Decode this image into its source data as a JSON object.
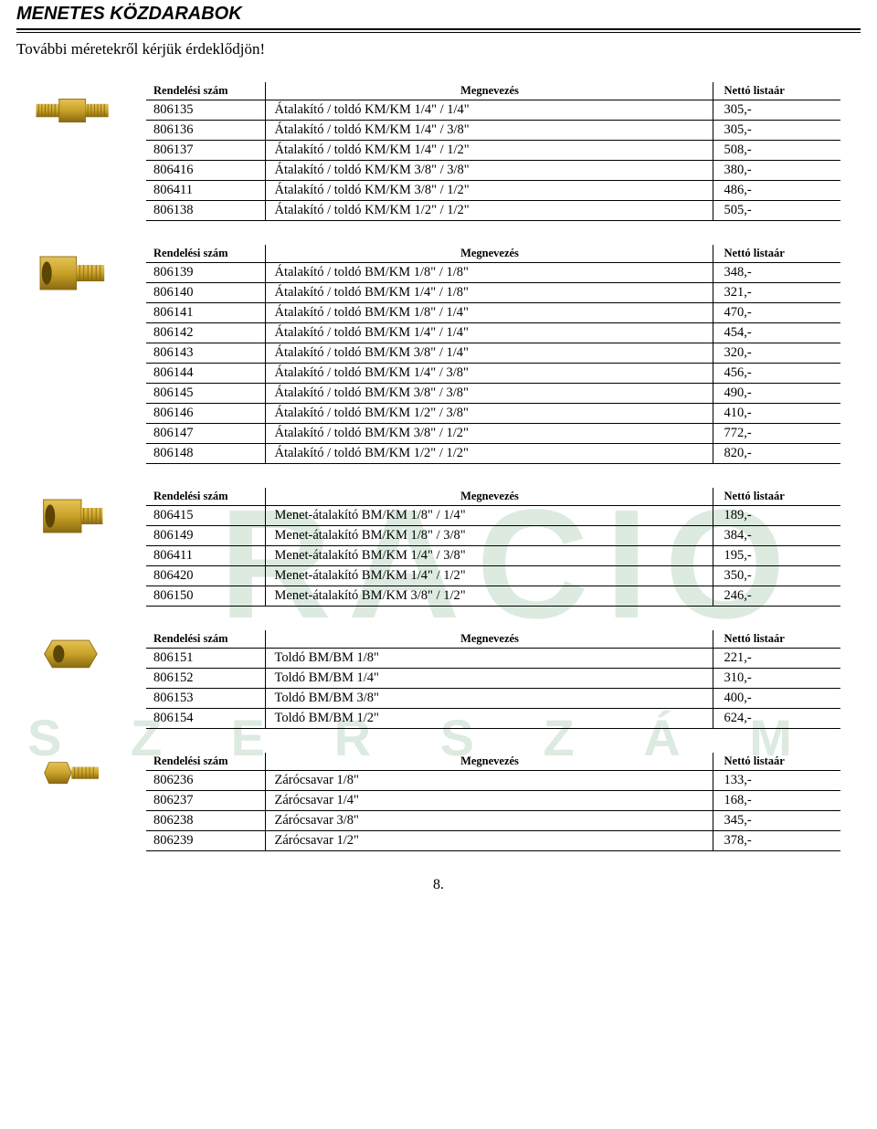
{
  "page": {
    "title": "MENETES KÖZDARABOK",
    "subtitle": "További méretekről kérjük érdeklődjön!",
    "page_number": "8."
  },
  "columns": {
    "code": "Rendelési  szám",
    "name": "Megnevezés",
    "price": "Nettó listaár"
  },
  "watermark": {
    "line1": "RACIO",
    "line2": "S Z E R S Z Á M"
  },
  "thumbs": {
    "brass_base": "#c9a227",
    "brass_light": "#e4c255",
    "brass_dark": "#8a6a12",
    "bg": "#ffffff"
  },
  "tables": [
    {
      "rows": [
        {
          "code": "806135",
          "name": "Átalakító / toldó KM/KM  1/4\" / 1/4\"",
          "price": "305,-"
        },
        {
          "code": "806136",
          "name": "Átalakító / toldó KM/KM  1/4\" / 3/8\"",
          "price": "305,-"
        },
        {
          "code": "806137",
          "name": "Átalakító / toldó KM/KM  1/4\" / 1/2\"",
          "price": "508,-"
        },
        {
          "code": "806416",
          "name": "Átalakító / toldó KM/KM  3/8\" / 3/8\"",
          "price": "380,-"
        },
        {
          "code": "806411",
          "name": "Átalakító / toldó KM/KM  3/8\" / 1/2\"",
          "price": "486,-"
        },
        {
          "code": "806138",
          "name": "Átalakító / toldó KM/KM  1/2\" / 1/2\"",
          "price": "505,-"
        }
      ]
    },
    {
      "rows": [
        {
          "code": "806139",
          "name": "Átalakító / toldó BM/KM  1/8\" / 1/8\"",
          "price": "348,-"
        },
        {
          "code": "806140",
          "name": "Átalakító / toldó BM/KM  1/4\" / 1/8\"",
          "price": "321,-"
        },
        {
          "code": "806141",
          "name": "Átalakító / toldó BM/KM  1/8\" / 1/4\"",
          "price": "470,-"
        },
        {
          "code": "806142",
          "name": "Átalakító / toldó BM/KM  1/4\" / 1/4\"",
          "price": "454,-"
        },
        {
          "code": "806143",
          "name": "Átalakító / toldó BM/KM  3/8\" / 1/4\"",
          "price": "320,-"
        },
        {
          "code": "806144",
          "name": "Átalakító / toldó BM/KM  1/4\" / 3/8\"",
          "price": "456,-"
        },
        {
          "code": "806145",
          "name": "Átalakító / toldó BM/KM  3/8\" / 3/8\"",
          "price": "490,-"
        },
        {
          "code": "806146",
          "name": "Átalakító / toldó BM/KM  1/2\" / 3/8\"",
          "price": "410,-"
        },
        {
          "code": "806147",
          "name": "Átalakító / toldó BM/KM  3/8\" / 1/2\"",
          "price": "772,-"
        },
        {
          "code": "806148",
          "name": "Átalakító / toldó BM/KM  1/2\" / 1/2\"",
          "price": "820,-"
        }
      ]
    },
    {
      "rows": [
        {
          "code": "806415",
          "name": "Menet-átalakító BM/KM  1/8\" / 1/4\"",
          "price": "189,-"
        },
        {
          "code": "806149",
          "name": "Menet-átalakító BM/KM  1/8\" / 3/8\"",
          "price": "384,-"
        },
        {
          "code": "806411",
          "name": "Menet-átalakító BM/KM  1/4\" / 3/8\"",
          "price": "195,-"
        },
        {
          "code": "806420",
          "name": "Menet-átalakító BM/KM  1/4\" / 1/2\"",
          "price": "350,-"
        },
        {
          "code": "806150",
          "name": "Menet-átalakító BM/KM  3/8\" / 1/2\"",
          "price": "246,-"
        }
      ]
    },
    {
      "rows": [
        {
          "code": "806151",
          "name": "Toldó BM/BM  1/8\"",
          "price": "221,-"
        },
        {
          "code": "806152",
          "name": "Toldó BM/BM  1/4\"",
          "price": "310,-"
        },
        {
          "code": "806153",
          "name": "Toldó BM/BM  3/8\"",
          "price": "400,-"
        },
        {
          "code": "806154",
          "name": "Toldó BM/BM  1/2\"",
          "price": "624,-"
        }
      ]
    },
    {
      "rows": [
        {
          "code": "806236",
          "name": "Zárócsavar 1/8\"",
          "price": "133,-"
        },
        {
          "code": "806237",
          "name": "Zárócsavar 1/4\"",
          "price": "168,-"
        },
        {
          "code": "806238",
          "name": "Zárócsavar 3/8\"",
          "price": "345,-"
        },
        {
          "code": "806239",
          "name": "Zárócsavar 1/2\"",
          "price": "378,-"
        }
      ]
    }
  ]
}
